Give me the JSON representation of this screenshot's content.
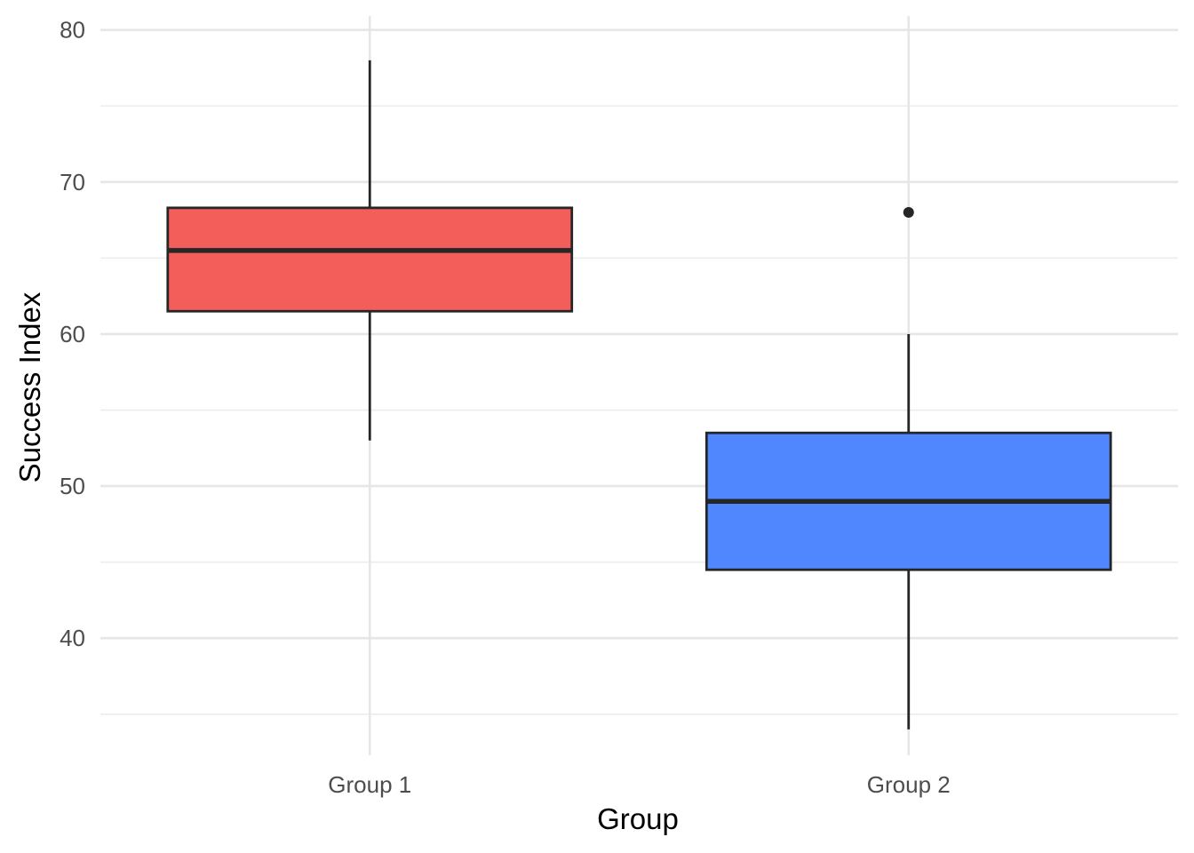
{
  "chart_data": {
    "type": "boxplot",
    "title": "",
    "xlabel": "Group",
    "ylabel": "Success Index",
    "categories": [
      "Group 1",
      "Group 2"
    ],
    "ylim": [
      32.3,
      81.5
    ],
    "y_ticks": [
      40,
      50,
      60,
      70,
      80
    ],
    "y_tick_labels": [
      "40",
      "50",
      "60",
      "70",
      "80"
    ],
    "y_minor_ticks": [
      35,
      45,
      55,
      65,
      75
    ],
    "grid": true,
    "legend": "none",
    "series": [
      {
        "category": "Group 1",
        "color": "#F35E5A",
        "whisker_low": 53,
        "q1": 61.5,
        "median": 65.5,
        "q3": 68.3,
        "whisker_high": 78,
        "outliers": []
      },
      {
        "category": "Group 2",
        "color": "#5087FF",
        "whisker_low": 34,
        "q1": 44.5,
        "median": 49,
        "q3": 53.5,
        "whisker_high": 60,
        "outliers": [
          68
        ]
      }
    ]
  }
}
